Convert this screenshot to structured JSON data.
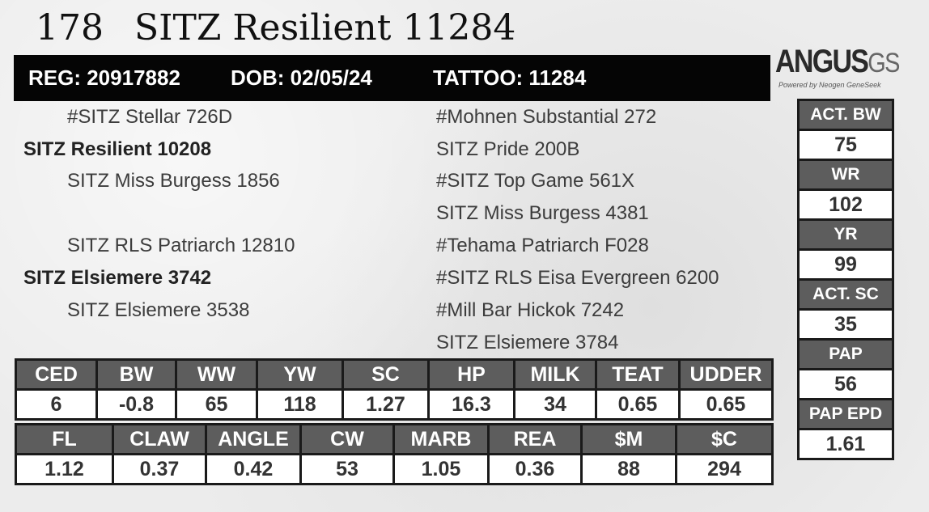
{
  "title": {
    "lot": "178",
    "name": "SITZ Resilient 11284"
  },
  "header": {
    "reg": "REG: 20917882",
    "dob": "DOB: 02/05/24",
    "tattoo": "TATTOO: 11284"
  },
  "logo": {
    "word": "ANGUS",
    "suffix": "GS",
    "tagline": "Powered by Neogen GeneSeek"
  },
  "pedigree": {
    "sire_sire": "#SITZ Stellar 726D",
    "sire": "SITZ Resilient 10208",
    "sire_dam": "SITZ Miss Burgess 1856",
    "dam_sire": "SITZ RLS Patriarch 12810",
    "dam": "SITZ Elsiemere 3742",
    "dam_dam": "SITZ Elsiemere 3538",
    "far": [
      "#Mohnen Substantial 272",
      "SITZ Pride 200B",
      "#SITZ Top Game 561X",
      "SITZ Miss Burgess 4381",
      "#Tehama Patriarch F028",
      "#SITZ RLS Eisa Evergreen 6200",
      "#Mill Bar Hickok 7242",
      "SITZ Elsiemere 3784"
    ]
  },
  "epd_row1": {
    "headers": [
      "CED",
      "BW",
      "WW",
      "YW",
      "SC",
      "HP",
      "MILK",
      "TEAT",
      "UDDER"
    ],
    "values": [
      "6",
      "-0.8",
      "65",
      "118",
      "1.27",
      "16.3",
      "34",
      "0.65",
      "0.65"
    ]
  },
  "epd_row2": {
    "headers": [
      "FL",
      "CLAW",
      "ANGLE",
      "CW",
      "MARB",
      "REA",
      "$M",
      "$C"
    ],
    "values": [
      "1.12",
      "0.37",
      "0.42",
      "53",
      "1.05",
      "0.36",
      "88",
      "294"
    ]
  },
  "side": [
    {
      "label": "ACT. BW",
      "value": "75"
    },
    {
      "label": "WR",
      "value": "102"
    },
    {
      "label": "YR",
      "value": "99"
    },
    {
      "label": "ACT. SC",
      "value": "35"
    },
    {
      "label": "PAP",
      "value": "56"
    },
    {
      "label": "PAP EPD",
      "value": "1.61"
    }
  ]
}
